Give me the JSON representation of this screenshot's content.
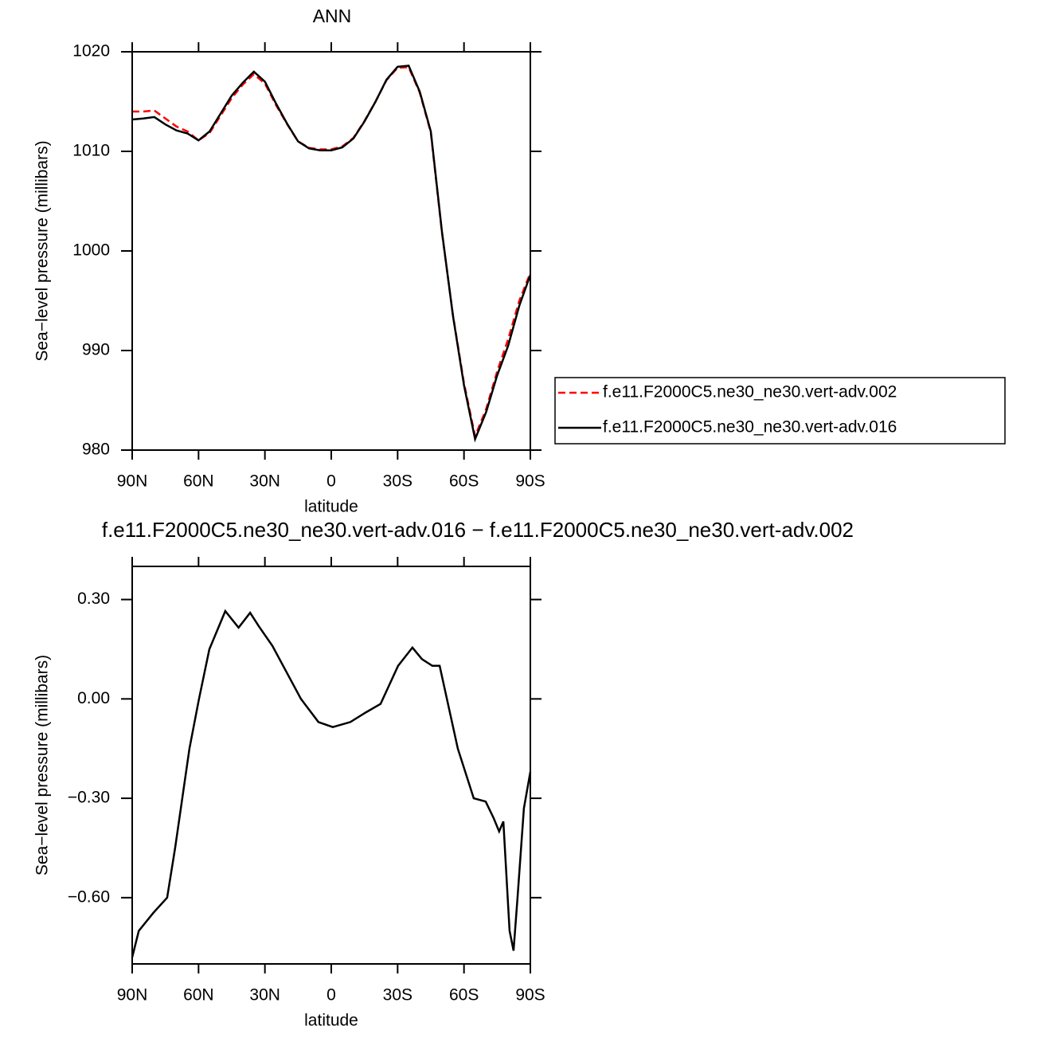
{
  "chart_data": [
    {
      "type": "line",
      "title": "ANN",
      "xlabel": "latitude",
      "ylabel": "Sea−level pressure (millibars)",
      "x": [
        90,
        85,
        80,
        75,
        70,
        65,
        60,
        55,
        50,
        45,
        40,
        35,
        30,
        25,
        20,
        15,
        10,
        5,
        0,
        -5,
        -10,
        -15,
        -20,
        -25,
        -30,
        -35,
        -40,
        -45,
        -50,
        -55,
        -60,
        -65,
        -70,
        -75,
        -80,
        -85,
        -90
      ],
      "series": [
        {
          "name": "f.e11.F2000C5.ne30_ne30.vert-adv.002",
          "color": "#ff0000",
          "dashed": true,
          "values": [
            1014.0,
            1014.0,
            1014.1,
            1013.3,
            1012.5,
            1012.0,
            1011.1,
            1011.85,
            1013.6,
            1015.35,
            1016.7,
            1017.75,
            1016.8,
            1014.65,
            1012.75,
            1011.0,
            1010.35,
            1010.2,
            1010.2,
            1010.5,
            1011.35,
            1013.05,
            1015.0,
            1017.15,
            1018.4,
            1018.45,
            1015.9,
            1011.9,
            1001.9,
            993.55,
            986.7,
            981.4,
            984.1,
            987.9,
            991.15,
            995.0,
            997.8
          ]
        },
        {
          "name": "f.e11.F2000C5.ne30_ne30.vert-adv.016",
          "color": "#000000",
          "dashed": false,
          "values": [
            1013.2,
            1013.3,
            1013.45,
            1012.7,
            1012.1,
            1011.8,
            1011.1,
            1012.0,
            1013.8,
            1015.6,
            1016.9,
            1018.0,
            1017.0,
            1014.8,
            1012.8,
            1011.0,
            1010.3,
            1010.1,
            1010.1,
            1010.4,
            1011.3,
            1013.0,
            1015.0,
            1017.2,
            1018.5,
            1018.6,
            1016.0,
            1012.0,
            1002.0,
            993.5,
            986.5,
            981.1,
            983.8,
            987.5,
            990.5,
            994.5,
            997.6
          ]
        }
      ],
      "xlim": [
        90,
        -90
      ],
      "xticks": [
        {
          "value": 90,
          "label": "90N"
        },
        {
          "value": 60,
          "label": "60N"
        },
        {
          "value": 30,
          "label": "30N"
        },
        0,
        {
          "value": -30,
          "label": "30S"
        },
        {
          "value": -60,
          "label": "60S"
        },
        {
          "value": -90,
          "label": "90S"
        }
      ],
      "ylim": [
        980,
        1020
      ],
      "yticks": [
        980,
        990,
        1000,
        1010,
        1020
      ]
    },
    {
      "type": "line",
      "title": "f.e11.F2000C5.ne30_ne30.vert-adv.016 − f.e11.F2000C5.ne30_ne30.vert-adv.002",
      "xlabel": "latitude",
      "ylabel": "Sea−level pressure (millibars)",
      "x": [
        90,
        87,
        80.3,
        74.2,
        70.6,
        64.1,
        59.8,
        55.1,
        47.9,
        41.9,
        36.7,
        32.8,
        26.6,
        13.7,
        5.8,
        -0.7,
        -8.6,
        -15.8,
        -22.3,
        -30.2,
        -36.7,
        -41,
        -45.7,
        -49,
        -57.2,
        -64.4,
        -69.8,
        -73.4,
        -75.9,
        -77.8,
        -80.6,
        -82.4,
        -84.2,
        -87.1,
        -90
      ],
      "series": [
        {
          "color": "#000000",
          "dashed": false,
          "values": [
            -0.78,
            -0.7,
            -0.645,
            -0.6,
            -0.45,
            -0.15,
            0.0,
            0.15,
            0.265,
            0.215,
            0.26,
            0.22,
            0.16,
            0.0,
            -0.07,
            -0.085,
            -0.07,
            -0.04,
            -0.015,
            0.1,
            0.155,
            0.12,
            0.1,
            0.1,
            -0.15,
            -0.3,
            -0.31,
            -0.36,
            -0.4,
            -0.37,
            -0.7,
            -0.76,
            -0.6,
            -0.33,
            -0.22
          ]
        }
      ],
      "xlim": [
        90,
        -90
      ],
      "xticks": [
        {
          "value": 90,
          "label": "90N"
        },
        {
          "value": 60,
          "label": "60N"
        },
        {
          "value": 30,
          "label": "30N"
        },
        0,
        {
          "value": -30,
          "label": "30S"
        },
        {
          "value": -60,
          "label": "60S"
        },
        {
          "value": -90,
          "label": "90S"
        }
      ],
      "ylim": [
        -0.8,
        0.4
      ],
      "yticks": [
        {
          "value": -0.6,
          "label": "−0.60"
        },
        {
          "value": -0.3,
          "label": "−0.30"
        },
        {
          "value": 0,
          "label": "0.00"
        },
        {
          "value": 0.3,
          "label": "0.30"
        }
      ]
    }
  ]
}
